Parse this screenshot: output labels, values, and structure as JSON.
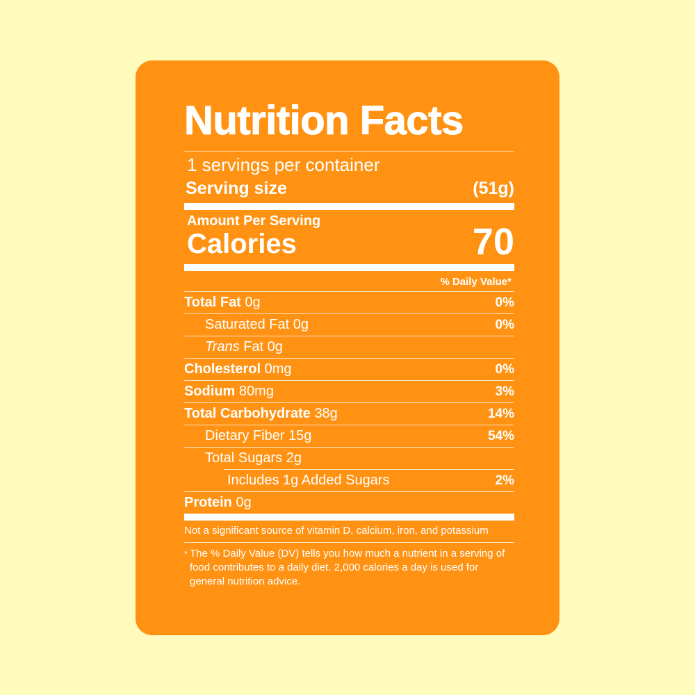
{
  "label": {
    "title": "Nutrition Facts",
    "servings_per_container": "1 servings per container",
    "serving_size_label": "Serving size",
    "serving_size_value": "(51g)",
    "amount_per_serving": "Amount Per Serving",
    "calories_label": "Calories",
    "calories_value": "70",
    "daily_value_header": "% Daily Value*",
    "nutrients": [
      {
        "name": "Total Fat",
        "amount": "0g",
        "dv": "0%"
      },
      {
        "name": "Saturated Fat",
        "amount": "0g",
        "dv": "0%"
      },
      {
        "name": "Trans",
        "amount": "Fat 0g",
        "dv": ""
      },
      {
        "name": "Cholesterol",
        "amount": "0mg",
        "dv": "0%"
      },
      {
        "name": "Sodium",
        "amount": "80mg",
        "dv": "3%"
      },
      {
        "name": "Total Carbohydrate",
        "amount": "38g",
        "dv": "14%"
      },
      {
        "name": "Dietary Fiber",
        "amount": "15g",
        "dv": "54%"
      },
      {
        "name": "Total Sugars",
        "amount": "2g",
        "dv": ""
      },
      {
        "name": "Includes 1g Added Sugars",
        "amount": "",
        "dv": "2%"
      },
      {
        "name": "Protein",
        "amount": "0g",
        "dv": ""
      }
    ],
    "footnote_vitamins": "Not a significant source of vitamin D, calcium, iron, and potassium",
    "footnote_star": "*",
    "footnote_dv": "The % Daily Value (DV) tells you how much a nutrient in a serving of food contributes to a daily diet. 2,000 calories a day is used for general nutrition advice."
  },
  "colors": {
    "background": "#fffbbd",
    "card": "#ff9212",
    "text": "#ffffff"
  }
}
